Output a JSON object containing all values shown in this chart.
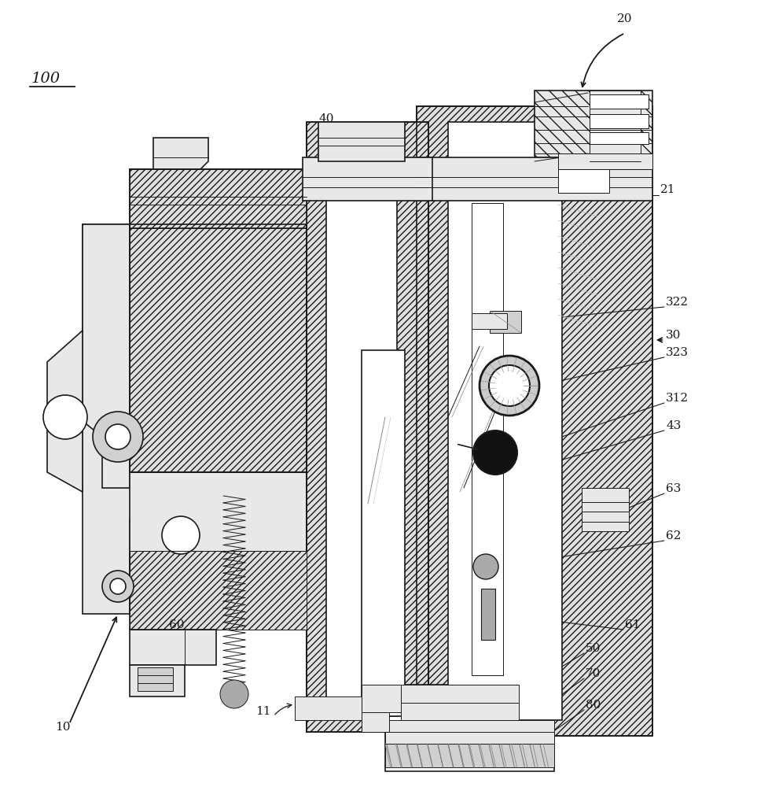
{
  "figure_width": 9.63,
  "figure_height": 10.0,
  "dpi": 100,
  "bg": "#ffffff",
  "lc": "#1a1a1a",
  "gray_light": "#e8e8e8",
  "gray_mid": "#d0d0d0",
  "gray_dark": "#aaaaaa",
  "hatch_fc": "#e0e0e0",
  "font": "serif",
  "fs": 11
}
